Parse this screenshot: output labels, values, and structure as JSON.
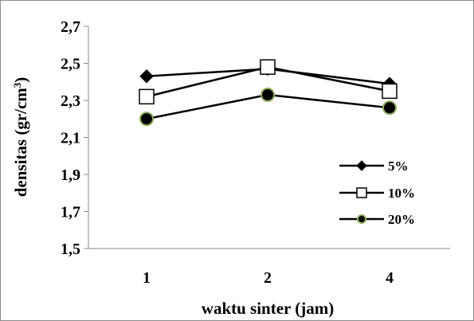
{
  "chart_data": {
    "type": "line",
    "categories": [
      "1",
      "2",
      "4"
    ],
    "xlabel": "waktu sinter (jam)",
    "ylabel": "densitas (gr/cm",
    "ylabel_sup": "3",
    "ylabel_close": ")",
    "ylim": [
      1.5,
      2.7
    ],
    "yticks": [
      "1,5",
      "1,7",
      "1,9",
      "2,1",
      "2,3",
      "2,5",
      "2,7"
    ],
    "ytick_values": [
      1.5,
      1.7,
      1.9,
      2.1,
      2.3,
      2.5,
      2.7
    ],
    "grid": false,
    "legend_position": "right",
    "series": [
      {
        "name": "5%",
        "values": [
          2.43,
          2.47,
          2.39
        ],
        "marker": "diamond",
        "marker_fill": "#000000",
        "marker_stroke": "#000000"
      },
      {
        "name": "10%",
        "values": [
          2.32,
          2.48,
          2.35
        ],
        "marker": "square",
        "marker_fill": "#ffffff",
        "marker_stroke": "#000000"
      },
      {
        "name": "20%",
        "values": [
          2.2,
          2.33,
          2.26
        ],
        "marker": "circle",
        "marker_fill": "#000000",
        "marker_stroke": "#8fae5c"
      }
    ]
  }
}
